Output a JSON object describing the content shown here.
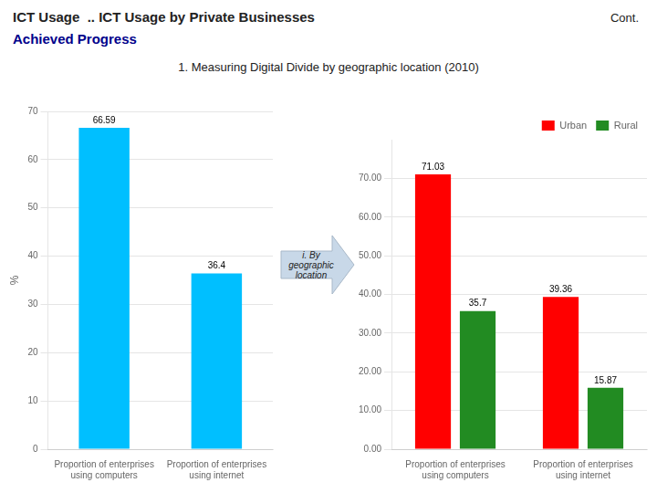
{
  "title": [
    "ICT Usage  .. ICT Usage by Private Businesses",
    "Cont.",
    "Achieved Progress"
  ],
  "subtitle": "1. Measuring Digital Divide by geographic location (2010)",
  "annotations": [
    "i. By geographic\nlocation"
  ],
  "chart_data": [
    {
      "type": "bar",
      "categories": [
        "Proportion of enterprises\nusing computers",
        "Proportion of enterprises\nusing internet"
      ],
      "values": [
        66.59,
        36.4
      ],
      "color": "#00BFFF",
      "ylabel": "%",
      "ylim": [
        0,
        70
      ],
      "yticks": [
        0,
        10,
        20,
        30,
        40,
        50,
        60,
        70
      ],
      "grid": true,
      "data_labels": true
    },
    {
      "type": "bar",
      "categories": [
        "Proportion of enterprises\nusing computers",
        "Proportion of enterprises\nusing internet"
      ],
      "series": [
        {
          "name": "Urban",
          "color": "#FF0000",
          "values": [
            71.03,
            39.36
          ]
        },
        {
          "name": "Rural",
          "color": "#228B22",
          "values": [
            35.7,
            15.87
          ]
        }
      ],
      "ylim": [
        0,
        80
      ],
      "yticks": [
        {
          "value": 0,
          "label": "0.00"
        },
        {
          "value": 10,
          "label": "10.00"
        },
        {
          "value": 20,
          "label": "20.00"
        },
        {
          "value": 30,
          "label": "30.00"
        },
        {
          "value": 40,
          "label": "40.00"
        },
        {
          "value": 50,
          "label": "50.00"
        },
        {
          "value": 60,
          "label": "60.00"
        },
        {
          "value": 70,
          "label": "70.00"
        }
      ],
      "grid": true,
      "data_labels": true,
      "legend": "upper right"
    }
  ]
}
